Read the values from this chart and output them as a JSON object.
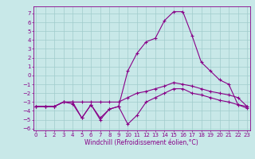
{
  "xlabel": "Windchill (Refroidissement éolien,°C)",
  "bg_color": "#c8e8e8",
  "grid_color": "#a0cccc",
  "line_color": "#880088",
  "x_values": [
    0,
    1,
    2,
    3,
    4,
    5,
    6,
    7,
    8,
    9,
    10,
    11,
    12,
    13,
    14,
    15,
    16,
    17,
    18,
    19,
    20,
    21,
    22,
    23
  ],
  "series_zigzag": [
    -3.5,
    -3.5,
    -3.5,
    -3.0,
    -3.0,
    -4.8,
    -3.3,
    -4.8,
    -3.8,
    -3.5,
    -5.5,
    -4.5,
    -3.0,
    -2.5,
    -2.0,
    -1.5,
    -1.5,
    -2.0,
    -2.2,
    -2.5,
    -2.8,
    -3.0,
    -3.3,
    -3.5
  ],
  "series_peak": [
    -3.5,
    -3.5,
    -3.5,
    -3.0,
    -3.2,
    -4.8,
    -3.3,
    -5.0,
    -3.8,
    -3.5,
    0.5,
    2.5,
    3.8,
    4.2,
    6.2,
    7.2,
    7.2,
    4.5,
    1.5,
    0.5,
    -0.5,
    -1.0,
    -3.3,
    -3.7
  ],
  "series_flat": [
    -3.5,
    -3.5,
    -3.5,
    -3.0,
    -3.0,
    -3.0,
    -3.0,
    -3.0,
    -3.0,
    -3.0,
    -2.5,
    -2.0,
    -1.8,
    -1.5,
    -1.2,
    -0.8,
    -1.0,
    -1.2,
    -1.5,
    -1.8,
    -2.0,
    -2.2,
    -2.5,
    -3.5
  ],
  "ylim": [
    -6.2,
    7.8
  ],
  "xlim": [
    -0.3,
    23.3
  ],
  "yticks": [
    -6,
    -5,
    -4,
    -3,
    -2,
    -1,
    0,
    1,
    2,
    3,
    4,
    5,
    6,
    7
  ],
  "xticks": [
    0,
    1,
    2,
    3,
    4,
    5,
    6,
    7,
    8,
    9,
    10,
    11,
    12,
    13,
    14,
    15,
    16,
    17,
    18,
    19,
    20,
    21,
    22,
    23
  ],
  "tick_fontsize": 5.0,
  "xlabel_fontsize": 5.5
}
